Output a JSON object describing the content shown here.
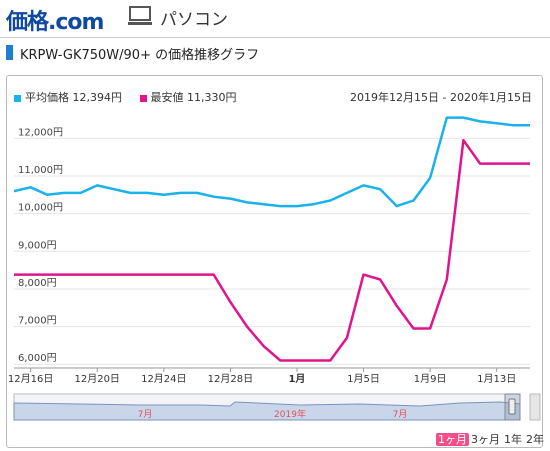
{
  "header": {
    "logo_main": "価格",
    "logo_dot": ".com",
    "category_icon": "pc-icon",
    "category_label": "パソコン"
  },
  "title": "KRPW-GK750W/90+ の価格推移グラフ",
  "legend": {
    "avg_label": "平均価格 12,394円",
    "min_label": "最安値 11,330円",
    "avg_color": "#1ab2e8",
    "min_color": "#e0148c"
  },
  "range_label": "2019年12月15日 - 2020年1月15日",
  "periods": [
    "1ヶ月",
    "3ヶ月",
    "1年",
    "2年"
  ],
  "active_period": "1ヶ月",
  "chart_data": {
    "type": "line",
    "title": "",
    "xlabel": "",
    "ylabel": "",
    "x": [
      "2019-12-15",
      "2019-12-16",
      "2019-12-17",
      "2019-12-18",
      "2019-12-19",
      "2019-12-20",
      "2019-12-21",
      "2019-12-22",
      "2019-12-23",
      "2019-12-24",
      "2019-12-25",
      "2019-12-26",
      "2019-12-27",
      "2019-12-28",
      "2019-12-29",
      "2019-12-30",
      "2019-12-31",
      "2020-01-01",
      "2020-01-02",
      "2020-01-03",
      "2020-01-04",
      "2020-01-05",
      "2020-01-06",
      "2020-01-07",
      "2020-01-08",
      "2020-01-09",
      "2020-01-10",
      "2020-01-11",
      "2020-01-12",
      "2020-01-13",
      "2020-01-14",
      "2020-01-15"
    ],
    "x_tick_labels": [
      "12月16日",
      "12月20日",
      "12月24日",
      "12月28日",
      "1月",
      "1月5日",
      "1月9日",
      "1月13日"
    ],
    "x_tick_dates": [
      "2019-12-16",
      "2019-12-20",
      "2019-12-24",
      "2019-12-28",
      "2020-01-01",
      "2020-01-05",
      "2020-01-09",
      "2020-01-13"
    ],
    "y_ticks": [
      "6,000円",
      "7,000円",
      "8,000円",
      "9,000円",
      "10,000円",
      "11,000円",
      "12,000円"
    ],
    "y_tick_values": [
      6000,
      7000,
      8000,
      9000,
      10000,
      11000,
      12000
    ],
    "ylim": [
      5900,
      12700
    ],
    "series": [
      {
        "name": "平均価格",
        "color": "#1ab2e8",
        "values": [
          10600,
          10700,
          10500,
          10550,
          10550,
          10750,
          10650,
          10550,
          10550,
          10500,
          10550,
          10550,
          10450,
          10400,
          10300,
          10250,
          10200,
          10200,
          10250,
          10350,
          10550,
          10750,
          10650,
          10200,
          10350,
          10950,
          12550,
          12550,
          12450,
          12400,
          12350,
          12350
        ]
      },
      {
        "name": "最安値",
        "color": "#e0148c",
        "values": [
          8380,
          8380,
          8380,
          8380,
          8380,
          8380,
          8380,
          8380,
          8380,
          8380,
          8380,
          8380,
          8380,
          7650,
          7000,
          6480,
          6100,
          6100,
          6100,
          6100,
          6700,
          8380,
          8250,
          7550,
          6950,
          6950,
          8250,
          11950,
          11330,
          11330,
          11330,
          11330
        ]
      }
    ],
    "navigator_labels": [
      "7月",
      "2019年",
      "7月"
    ],
    "grid": true
  }
}
